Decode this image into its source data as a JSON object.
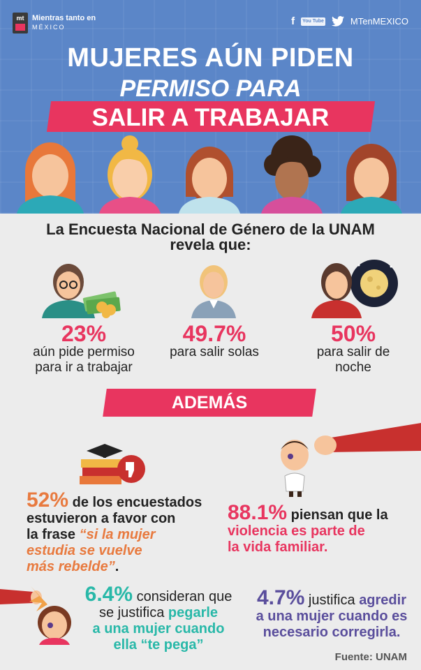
{
  "brand": {
    "logo_mark": "mt",
    "name": "Mientras tanto en",
    "country": "MÉXICO",
    "handle": "MTenMEXICO",
    "social_icons": [
      "facebook-icon",
      "youtube-icon",
      "twitter-icon"
    ],
    "youtube_label": "You Tube"
  },
  "title": {
    "line1": "MUJERES AÚN PIDEN",
    "line2": "PERMISO PARA",
    "line3": "SALIR A TRABAJAR"
  },
  "intro": {
    "line1": "La Encuesta Nacional de Género de la UNAM",
    "line2": "revela que:"
  },
  "stats": [
    {
      "pct": "23%",
      "line1": "aún pide permiso",
      "line2": "para ir a trabajar"
    },
    {
      "pct": "49.7%",
      "line1": "para salir solas",
      "line2": ""
    },
    {
      "pct": "50%",
      "line1": "para salir de",
      "line2": "noche"
    }
  ],
  "ademas": "ADEMÁS",
  "facts": {
    "f1": {
      "pct": "52%",
      "a": " de los encuestados",
      "b": "estuvieron a favor con",
      "c": "la frase ",
      "d": "“si la mujer",
      "e": "estudia se vuelve",
      "f": "más rebelde”",
      "g": "."
    },
    "f2": {
      "pct": "88.1%",
      "a": " piensan que la",
      "b": "violencia es parte de",
      "c": "la vida familiar."
    },
    "f3": {
      "pct": "6.4%",
      "a": " consideran que",
      "b": "se justifica ",
      "c": "pegarle",
      "d": "a una mujer cuando",
      "e": "ella “te pega”"
    },
    "f4": {
      "pct": "4.7%",
      "a": " justifica ",
      "b": "agredir",
      "c": "a una mujer cuando es",
      "d": "necesario corregirla."
    }
  },
  "source": "Fuente: UNAM",
  "colors": {
    "header_bg": "#5b86c8",
    "accent_pink": "#e8355f",
    "orange": "#e87a3f",
    "teal": "#28b8a8",
    "purple": "#5a4e9c"
  }
}
